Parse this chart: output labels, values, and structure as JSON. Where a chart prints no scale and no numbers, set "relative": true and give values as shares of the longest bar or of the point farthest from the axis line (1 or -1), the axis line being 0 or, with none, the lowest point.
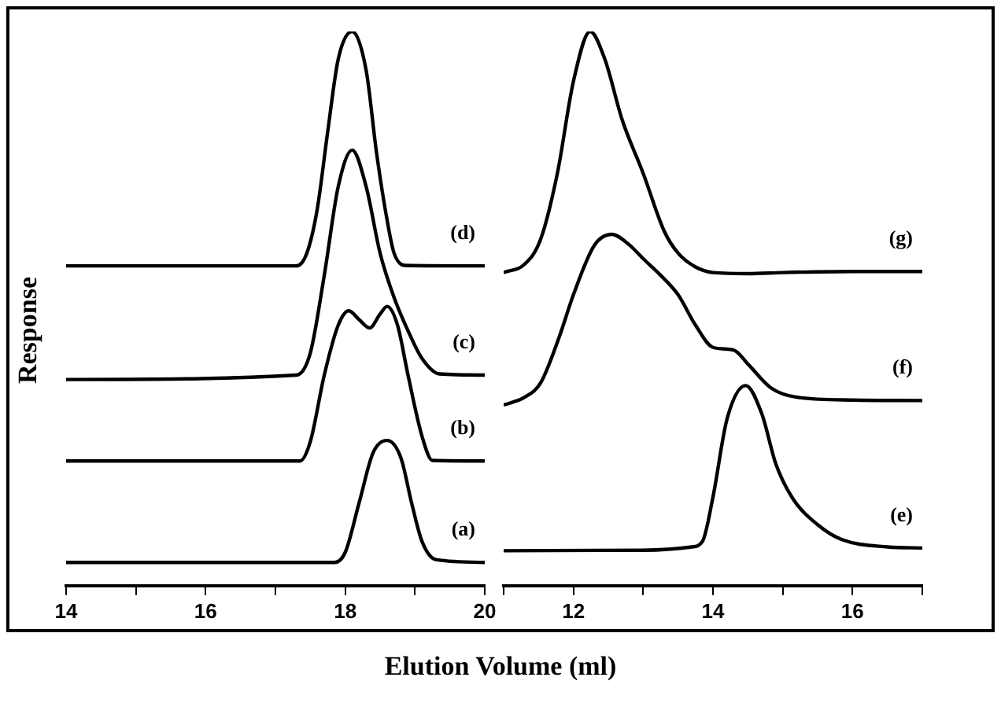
{
  "chart_data": [
    {
      "type": "line",
      "relative": true,
      "ylabel": "Response",
      "xlabel": "Elution Volume (ml)",
      "marker": "none",
      "xlim": [
        14,
        20
      ],
      "xticks": [
        14,
        {
          "value": 15,
          "label": null
        },
        16,
        {
          "value": 17,
          "label": null
        },
        18,
        {
          "value": 19,
          "label": null
        },
        20
      ],
      "series": [
        {
          "name": "(a)",
          "color": "#000000",
          "x": [
            14,
            17.85,
            18.0,
            18.2,
            18.4,
            18.6,
            18.8,
            18.95,
            19.1,
            19.3,
            20
          ],
          "values": [
            0.042,
            0.042,
            0.06,
            0.15,
            0.24,
            0.262,
            0.23,
            0.15,
            0.08,
            0.047,
            0.042
          ]
        },
        {
          "name": "(b)",
          "color": "#000000",
          "x": [
            14,
            17.35,
            17.5,
            17.7,
            17.9,
            18.05,
            18.2,
            18.35,
            18.5,
            18.6,
            18.75,
            18.9,
            19.1,
            19.25,
            20
          ],
          "values": [
            0.225,
            0.225,
            0.26,
            0.38,
            0.47,
            0.496,
            0.48,
            0.465,
            0.49,
            0.504,
            0.47,
            0.38,
            0.27,
            0.226,
            0.225
          ]
        },
        {
          "name": "(c)",
          "color": "#000000",
          "x": [
            14,
            17.3,
            17.5,
            17.7,
            17.9,
            18.1,
            18.3,
            18.5,
            18.7,
            18.9,
            19.1,
            19.35,
            20
          ],
          "values": [
            0.372,
            0.38,
            0.42,
            0.56,
            0.72,
            0.786,
            0.72,
            0.6,
            0.52,
            0.46,
            0.41,
            0.382,
            0.38
          ]
        },
        {
          "name": "(d)",
          "color": "#000000",
          "x": [
            14,
            17.3,
            17.45,
            17.6,
            17.75,
            17.9,
            18.1,
            18.3,
            18.45,
            18.6,
            18.7,
            18.85,
            20
          ],
          "values": [
            0.577,
            0.577,
            0.6,
            0.68,
            0.82,
            0.95,
            1.0,
            0.93,
            0.78,
            0.66,
            0.6,
            0.578,
            0.577
          ]
        }
      ]
    },
    {
      "type": "line",
      "relative": true,
      "marker": "none",
      "xlim": [
        11,
        17
      ],
      "xticks": [
        {
          "value": 11,
          "label": null
        },
        12,
        {
          "value": 13,
          "label": null
        },
        14,
        {
          "value": 15,
          "label": null
        },
        16,
        {
          "value": 17,
          "label": null
        }
      ],
      "series": [
        {
          "name": "(e)",
          "color": "#000000",
          "x": [
            11,
            13,
            13.7,
            13.85,
            14.0,
            14.2,
            14.47,
            14.7,
            14.9,
            15.14,
            15.5,
            15.85,
            16.5,
            17
          ],
          "values": [
            0.063,
            0.064,
            0.07,
            0.08,
            0.16,
            0.3,
            0.361,
            0.31,
            0.22,
            0.158,
            0.11,
            0.083,
            0.07,
            0.068
          ]
        },
        {
          "name": "(f)",
          "color": "#000000",
          "x": [
            11,
            11.3,
            11.53,
            11.8,
            12.0,
            12.3,
            12.55,
            12.8,
            13.0,
            13.25,
            13.5,
            13.75,
            14.0,
            14.3,
            14.5,
            14.83,
            15.2,
            16,
            17
          ],
          "values": [
            0.326,
            0.34,
            0.366,
            0.45,
            0.525,
            0.614,
            0.634,
            0.615,
            0.59,
            0.56,
            0.525,
            0.47,
            0.43,
            0.425,
            0.4,
            0.357,
            0.34,
            0.335,
            0.334
          ]
        },
        {
          "name": "(g)",
          "color": "#000000",
          "x": [
            11,
            11.3,
            11.53,
            11.77,
            12.0,
            12.24,
            12.45,
            12.7,
            13.0,
            13.3,
            13.5,
            13.75,
            14.0,
            14.5,
            15.0,
            16,
            17
          ],
          "values": [
            0.565,
            0.58,
            0.625,
            0.744,
            0.91,
            1.0,
            0.95,
            0.84,
            0.744,
            0.64,
            0.6,
            0.575,
            0.565,
            0.563,
            0.565,
            0.567,
            0.567
          ]
        }
      ]
    }
  ]
}
